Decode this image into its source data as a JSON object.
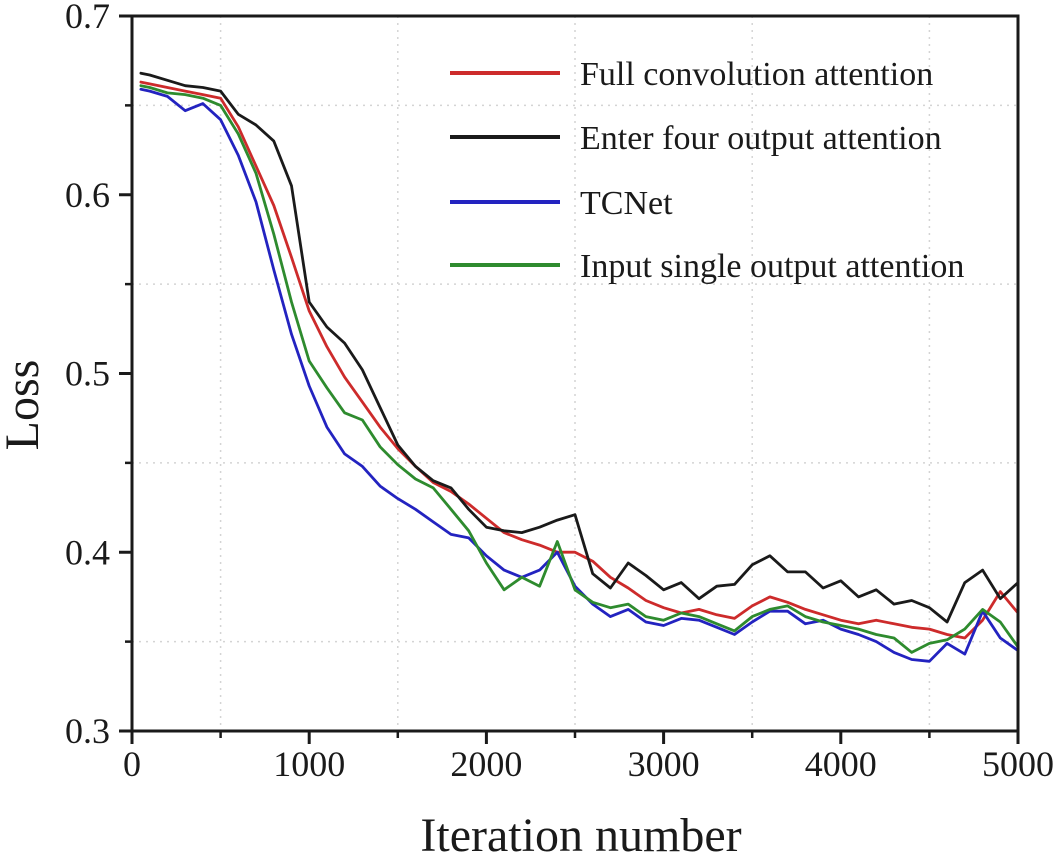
{
  "chart_data": {
    "type": "line",
    "title": "",
    "xlabel": "Iteration number",
    "ylabel": "Loss",
    "xlim": [
      0,
      5000
    ],
    "ylim": [
      0.3,
      0.7
    ],
    "grid": "dotted gridlines at minor ticks only",
    "legend_position": "top-right inside plot, no border",
    "x_ticks": [
      {
        "v": 0,
        "label": "0"
      },
      {
        "v": 1000,
        "label": "1000"
      },
      {
        "v": 2000,
        "label": "2000"
      },
      {
        "v": 3000,
        "label": "3000"
      },
      {
        "v": 4000,
        "label": "4000"
      },
      {
        "v": 5000,
        "label": "5000"
      }
    ],
    "y_ticks": [
      {
        "v": 0.3,
        "label": "0.3"
      },
      {
        "v": 0.4,
        "label": "0.4"
      },
      {
        "v": 0.5,
        "label": "0.5"
      },
      {
        "v": 0.6,
        "label": "0.6"
      },
      {
        "v": 0.7,
        "label": "0.7"
      }
    ],
    "x_minor_ticks": [
      500,
      1500,
      2500,
      3500,
      4500
    ],
    "y_minor_ticks": [
      0.35,
      0.45,
      0.55,
      0.65
    ],
    "x": [
      50,
      100,
      200,
      300,
      400,
      500,
      600,
      700,
      800,
      900,
      1000,
      1100,
      1200,
      1300,
      1400,
      1500,
      1600,
      1700,
      1800,
      1900,
      2000,
      2100,
      2200,
      2300,
      2400,
      2500,
      2600,
      2700,
      2800,
      2900,
      3000,
      3100,
      3200,
      3300,
      3400,
      3500,
      3600,
      3700,
      3800,
      3900,
      4000,
      4100,
      4200,
      4300,
      4400,
      4500,
      4600,
      4700,
      4800,
      4900,
      5000
    ],
    "series": [
      {
        "name": "Full convolution attention",
        "color": "#cd2b2b",
        "label_color": "#1a1a1a",
        "values": [
          0.663,
          0.662,
          0.66,
          0.658,
          0.656,
          0.654,
          0.638,
          0.616,
          0.594,
          0.565,
          0.535,
          0.515,
          0.498,
          0.484,
          0.47,
          0.458,
          0.448,
          0.439,
          0.434,
          0.427,
          0.419,
          0.411,
          0.407,
          0.404,
          0.4,
          0.4,
          0.395,
          0.386,
          0.38,
          0.373,
          0.369,
          0.366,
          0.368,
          0.365,
          0.363,
          0.37,
          0.375,
          0.372,
          0.368,
          0.365,
          0.362,
          0.36,
          0.362,
          0.36,
          0.358,
          0.357,
          0.354,
          0.352,
          0.362,
          0.378,
          0.366
        ]
      },
      {
        "name": "Enter four output attention",
        "color": "#1a1a1a",
        "label_color": "#1a1a1a",
        "values": [
          0.668,
          0.667,
          0.664,
          0.661,
          0.66,
          0.658,
          0.645,
          0.639,
          0.63,
          0.605,
          0.54,
          0.526,
          0.517,
          0.502,
          0.481,
          0.46,
          0.448,
          0.44,
          0.436,
          0.424,
          0.414,
          0.412,
          0.411,
          0.414,
          0.418,
          0.421,
          0.388,
          0.38,
          0.394,
          0.387,
          0.379,
          0.383,
          0.374,
          0.381,
          0.382,
          0.393,
          0.398,
          0.389,
          0.389,
          0.38,
          0.384,
          0.375,
          0.379,
          0.371,
          0.373,
          0.369,
          0.361,
          0.383,
          0.39,
          0.374,
          0.383
        ]
      },
      {
        "name": "TCNet",
        "color": "#2323c0",
        "label_color": "#2a2aa8",
        "values": [
          0.659,
          0.658,
          0.655,
          0.647,
          0.651,
          0.642,
          0.622,
          0.596,
          0.558,
          0.522,
          0.493,
          0.47,
          0.455,
          0.448,
          0.437,
          0.43,
          0.424,
          0.417,
          0.41,
          0.408,
          0.398,
          0.39,
          0.386,
          0.39,
          0.4,
          0.381,
          0.371,
          0.364,
          0.368,
          0.361,
          0.359,
          0.363,
          0.362,
          0.358,
          0.354,
          0.361,
          0.367,
          0.367,
          0.36,
          0.362,
          0.357,
          0.354,
          0.35,
          0.344,
          0.34,
          0.339,
          0.349,
          0.343,
          0.367,
          0.352,
          0.345
        ]
      },
      {
        "name": "Input single output attention",
        "color": "#2e8b2e",
        "label_color": "#2e8b2e",
        "values": [
          0.661,
          0.66,
          0.657,
          0.656,
          0.654,
          0.65,
          0.634,
          0.612,
          0.578,
          0.54,
          0.507,
          0.492,
          0.478,
          0.474,
          0.459,
          0.449,
          0.441,
          0.436,
          0.424,
          0.412,
          0.394,
          0.379,
          0.386,
          0.381,
          0.406,
          0.379,
          0.372,
          0.369,
          0.371,
          0.364,
          0.362,
          0.366,
          0.364,
          0.36,
          0.356,
          0.364,
          0.368,
          0.37,
          0.364,
          0.361,
          0.359,
          0.357,
          0.354,
          0.352,
          0.344,
          0.349,
          0.351,
          0.357,
          0.368,
          0.361,
          0.347
        ]
      }
    ],
    "legend_order": [
      "Full convolution attention",
      "Enter four output attention",
      "TCNet",
      "Input single output attention"
    ],
    "colors": {
      "frame": "#1a1a1a",
      "grid": "#d4d4d4",
      "background": "#ffffff"
    }
  }
}
